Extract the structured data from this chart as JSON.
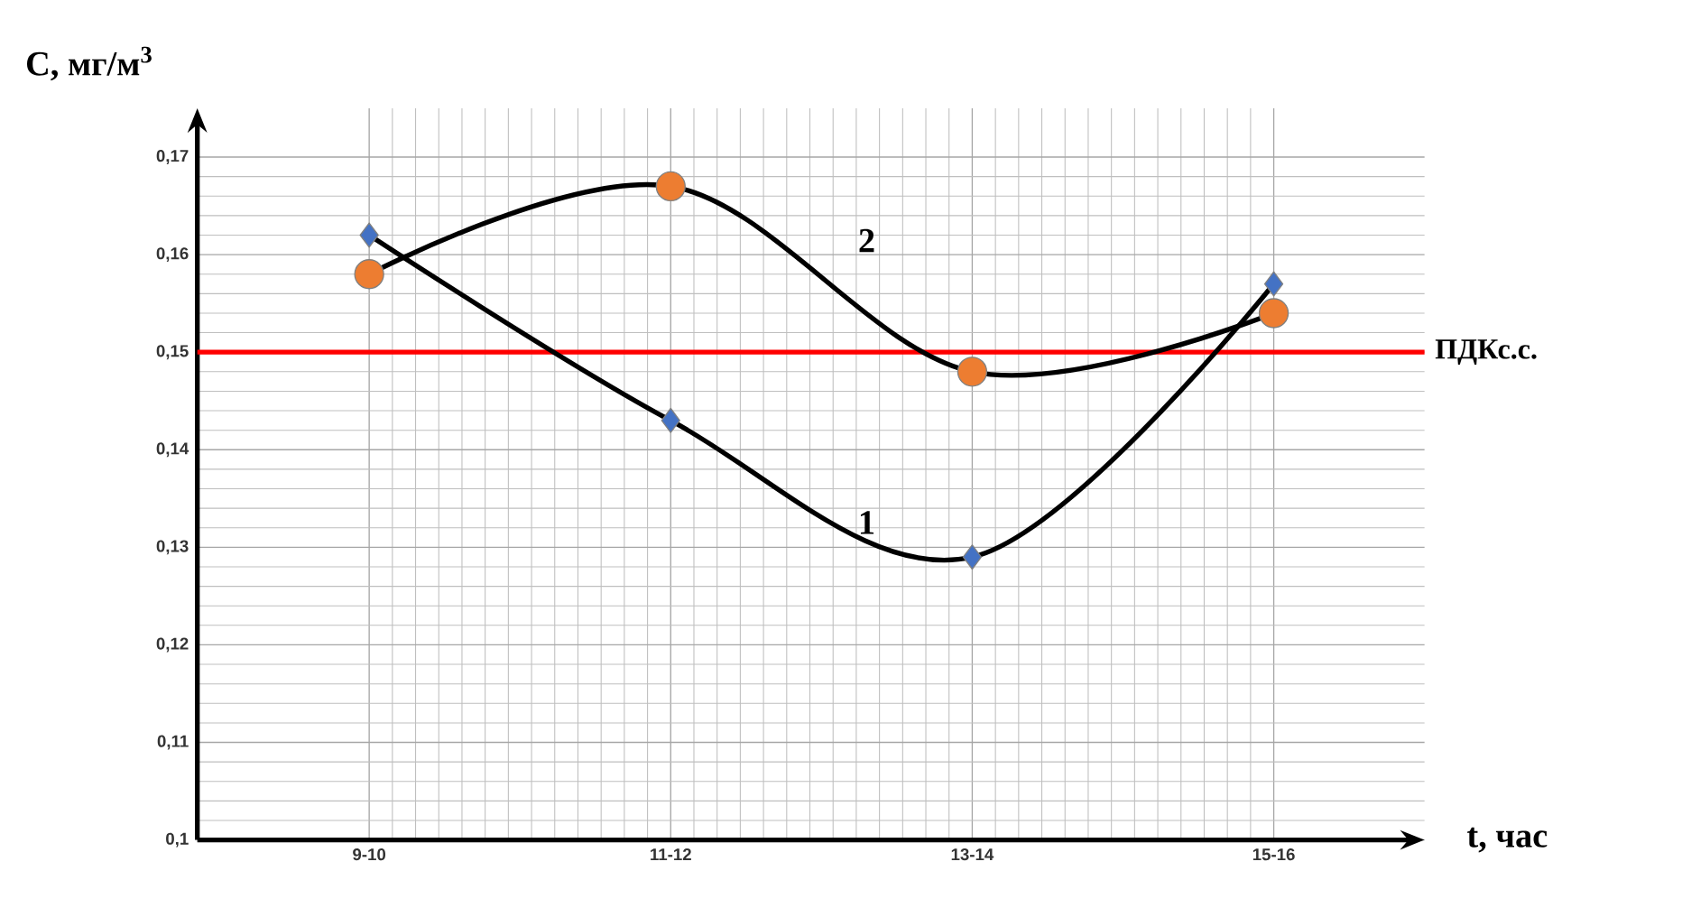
{
  "chart_data": {
    "type": "line",
    "xlabel": "t, час",
    "ylabel": "C, мг/м$^{3}$",
    "categories": [
      "9-10",
      "11-12",
      "13-14",
      "15-16"
    ],
    "series": [
      {
        "name": "1",
        "color": "#4472c4",
        "marker": "diamond",
        "values": [
          0.162,
          0.143,
          0.129,
          0.157
        ]
      },
      {
        "name": "2",
        "color": "#ed7d31",
        "marker": "circle",
        "values": [
          0.158,
          0.167,
          0.148,
          0.154
        ]
      }
    ],
    "ylim": [
      0.1,
      0.175
    ],
    "yticks": [
      {
        "value": 0.1,
        "label": "0,1"
      },
      {
        "value": 0.11,
        "label": "0,11"
      },
      {
        "value": 0.12,
        "label": "0,12"
      },
      {
        "value": 0.13,
        "label": "0,13"
      },
      {
        "value": 0.14,
        "label": "0,14"
      },
      {
        "value": 0.15,
        "label": "0,15"
      },
      {
        "value": 0.16,
        "label": "0,16"
      },
      {
        "value": 0.17,
        "label": "0,17"
      }
    ],
    "ref_lines": [
      {
        "axis": "y",
        "value": 0.15,
        "label": "ПДКс.с.",
        "color": "#ff0000"
      }
    ],
    "grid": true,
    "line_style": "solid"
  }
}
